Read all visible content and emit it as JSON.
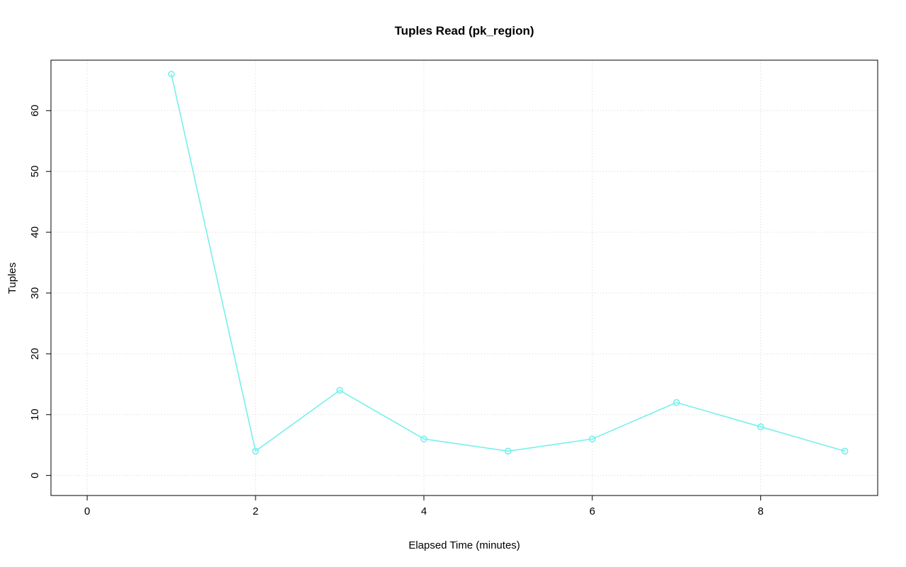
{
  "page": {
    "background": "#ffffff"
  },
  "chart_data": {
    "type": "line",
    "title": "Tuples Read (pk_region)",
    "xlabel": "Elapsed Time (minutes)",
    "ylabel": "Tuples",
    "x": [
      1,
      2,
      3,
      4,
      5,
      6,
      7,
      8,
      9
    ],
    "values": [
      66,
      4,
      14,
      6,
      4,
      6,
      12,
      8,
      4
    ],
    "xticks": [
      0,
      2,
      4,
      6,
      8
    ],
    "yticks": [
      0,
      10,
      20,
      30,
      40,
      50,
      60
    ],
    "xlim": [
      -0.43,
      9.39
    ],
    "ylim": [
      -3.3,
      68.3
    ],
    "grid": true,
    "legend_position": "none",
    "line_color": "#76F0EA",
    "marker": "open-circle",
    "marker_fill": "#ffffff",
    "grid_color": "#D3D3D3",
    "grid_style": "dotted",
    "box_color": "#000000",
    "tick_color": "#000000"
  }
}
